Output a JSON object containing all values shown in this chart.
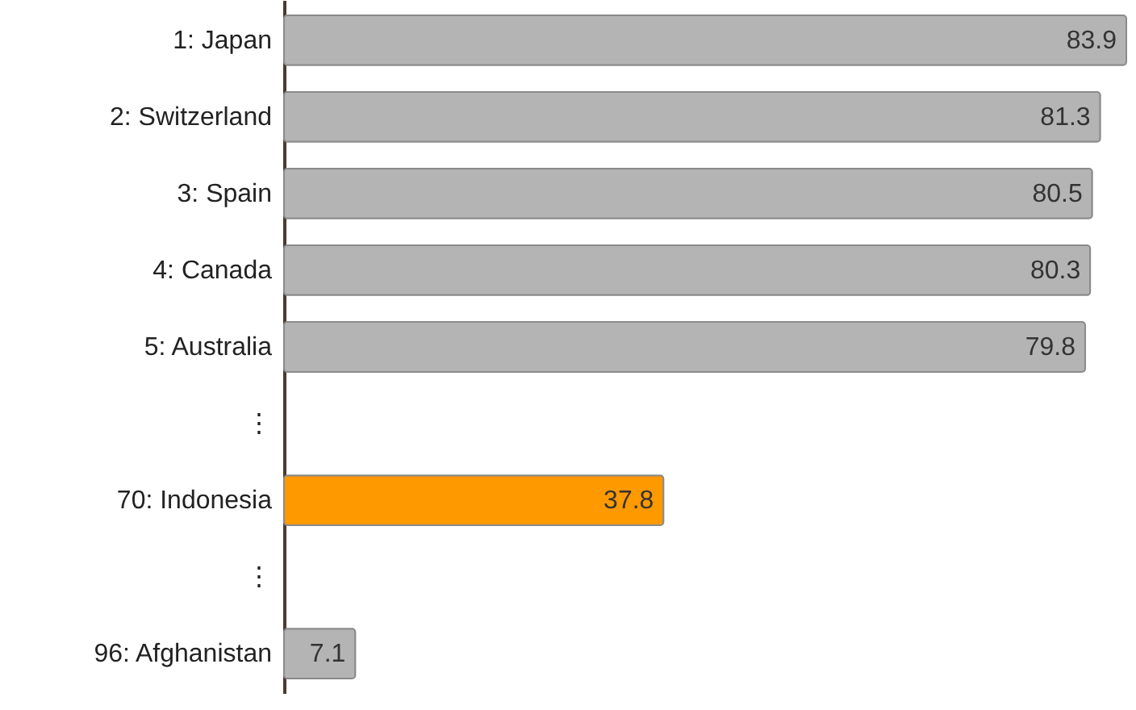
{
  "chart_data": {
    "type": "bar",
    "orientation": "horizontal",
    "data_labels": true,
    "categories": [
      "1: Japan",
      "2: Switzerland",
      "3: Spain",
      "4: Canada",
      "5: Australia",
      "⋮",
      "70: Indonesia",
      "⋮",
      "96: Afghanistan"
    ],
    "values": [
      83.9,
      81.3,
      80.5,
      80.3,
      79.8,
      null,
      37.8,
      null,
      7.1
    ],
    "colors": [
      "#b4b4b4",
      "#b4b4b4",
      "#b4b4b4",
      "#b4b4b4",
      "#b4b4b4",
      "#b4b4b4",
      "#ff9900",
      "#b4b4b4",
      "#b4b4b4"
    ],
    "tick_labels": "y"
  }
}
